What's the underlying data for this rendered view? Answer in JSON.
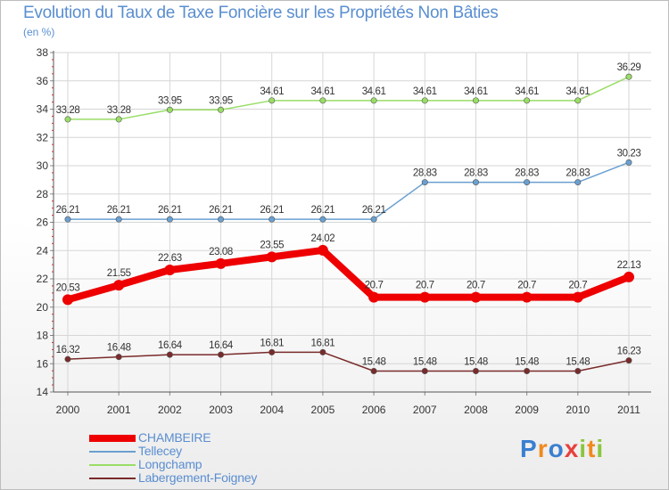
{
  "title": "Evolution du Taux de Taxe Foncière sur les Propriétés Non Bâties",
  "unit": "(en %)",
  "logo": {
    "text": "Proxiti",
    "letters": [
      "P",
      "r",
      "o",
      "x",
      "i",
      "t",
      "i"
    ],
    "colors": [
      "#3a7fd0",
      "#f08a1e",
      "#3a7fd0",
      "#e8403c",
      "#8cc63f",
      "#f08a1e",
      "#8cc63f"
    ]
  },
  "chart_data": {
    "type": "line",
    "title": "Evolution du Taux de Taxe Foncière sur les Propriétés Non Bâties",
    "ylabel": "(en %)",
    "xlabel": "",
    "categories": [
      "2000",
      "2001",
      "2002",
      "2003",
      "2004",
      "2005",
      "2006",
      "2007",
      "2008",
      "2009",
      "2010",
      "2011"
    ],
    "ylim": [
      14,
      38
    ],
    "yticks": [
      "14",
      "16",
      "18",
      "20",
      "22",
      "24",
      "26",
      "28",
      "30",
      "32",
      "34",
      "36",
      "38"
    ],
    "grid": true,
    "legend_position": "bottom-left",
    "series": [
      {
        "name": "CHAMBEIRE",
        "color": "#ee0000",
        "emphasis": true,
        "values": [
          20.53,
          21.55,
          22.63,
          23.08,
          23.55,
          24.02,
          20.7,
          20.7,
          20.7,
          20.7,
          20.7,
          22.13
        ],
        "labels": [
          "20.53",
          "21.55",
          "22.63",
          "23.08",
          "23.55",
          "24.02",
          "20.7",
          "20.7",
          "20.7",
          "20.7",
          "20.7",
          "22.13"
        ]
      },
      {
        "name": "Tellecey",
        "color": "#6aa0d0",
        "emphasis": false,
        "values": [
          26.21,
          26.21,
          26.21,
          26.21,
          26.21,
          26.21,
          26.21,
          28.83,
          28.83,
          28.83,
          28.83,
          30.23
        ],
        "labels": [
          "26.21",
          "26.21",
          "26.21",
          "26.21",
          "26.21",
          "26.21",
          "26.21",
          "28.83",
          "28.83",
          "28.83",
          "28.83",
          "30.23"
        ]
      },
      {
        "name": "Longchamp",
        "color": "#99dd66",
        "emphasis": false,
        "values": [
          33.28,
          33.28,
          33.95,
          33.95,
          34.61,
          34.61,
          34.61,
          34.61,
          34.61,
          34.61,
          34.61,
          36.29
        ],
        "labels": [
          "33.28",
          "33.28",
          "33.95",
          "33.95",
          "34.61",
          "34.61",
          "34.61",
          "34.61",
          "34.61",
          "34.61",
          "34.61",
          "36.29"
        ]
      },
      {
        "name": "Labergement-Foigney",
        "color": "#7a2a2a",
        "emphasis": false,
        "values": [
          16.32,
          16.48,
          16.64,
          16.64,
          16.81,
          16.81,
          15.48,
          15.48,
          15.48,
          15.48,
          15.48,
          16.23
        ],
        "labels": [
          "16.32",
          "16.48",
          "16.64",
          "16.64",
          "16.81",
          "16.81",
          "15.48",
          "15.48",
          "15.48",
          "15.48",
          "15.48",
          "16.23"
        ]
      }
    ]
  }
}
